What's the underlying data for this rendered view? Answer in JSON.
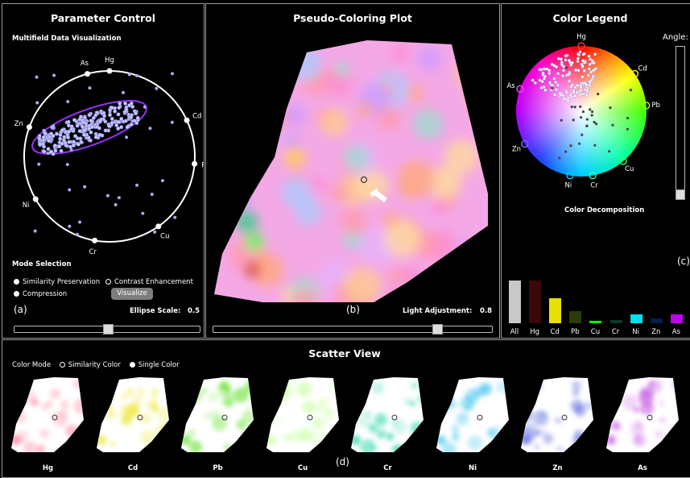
{
  "param_panel": {
    "title": "Parameter Control",
    "subtitle": "Multifield Data Visualization",
    "axes": [
      "Hg",
      "Cd",
      "Pb",
      "Cu",
      "Cr",
      "Ni",
      "Zn",
      "As"
    ],
    "mode_title": "Mode Selection",
    "mode_similarity": "Similarity Preservation",
    "mode_contrast": "Contrast Enhancement",
    "mode_compression": "Compression",
    "visualize_label": "Visualize",
    "ellipse_label": "Ellipse Scale:",
    "ellipse_value": "0.5",
    "ellipse_fraction": 0.5,
    "tag": "(a)"
  },
  "plot_panel": {
    "title": "Pseudo-Coloring Plot",
    "light_label": "Light Adjustment:",
    "light_value": "0.8",
    "light_fraction": 0.8,
    "tag": "(b)"
  },
  "legend_panel": {
    "title": "Color Legend",
    "angle_label": "Angle:",
    "wheel_labels": [
      "Hg",
      "Cd",
      "Pb",
      "Cu",
      "Cr",
      "Ni",
      "Zn",
      "As"
    ],
    "decomp_title": "Color Decomposition",
    "tag": "(c)",
    "bars": [
      {
        "label": "All",
        "value": 0.85,
        "color": "#c8c8c8"
      },
      {
        "label": "Hg",
        "value": 0.85,
        "color": "#3a0808"
      },
      {
        "label": "Cd",
        "value": 0.5,
        "color": "#e8e000"
      },
      {
        "label": "Pb",
        "value": 0.25,
        "color": "#2c3a08"
      },
      {
        "label": "Cu",
        "value": 0.05,
        "color": "#00ff00"
      },
      {
        "label": "Cr",
        "value": 0.07,
        "color": "#0a3a2a"
      },
      {
        "label": "Ni",
        "value": 0.17,
        "color": "#00e0e8"
      },
      {
        "label": "Zn",
        "value": 0.1,
        "color": "#0a1a4a"
      },
      {
        "label": "As",
        "value": 0.17,
        "color": "#c000e8"
      }
    ]
  },
  "scatter_panel": {
    "title": "Scatter View",
    "color_mode_label": "Color Mode",
    "similarity_label": "Similarity Color",
    "single_label": "Single Color",
    "tag": "(d)",
    "thumbs": [
      {
        "name": "Hg",
        "color": "#ff5a78"
      },
      {
        "name": "Cd",
        "color": "#e8e000"
      },
      {
        "name": "Pb",
        "color": "#44dd00"
      },
      {
        "name": "Cu",
        "color": "#bbff88"
      },
      {
        "name": "Cr",
        "color": "#00cc99"
      },
      {
        "name": "Ni",
        "color": "#22bbee"
      },
      {
        "name": "Zn",
        "color": "#4455dd"
      },
      {
        "name": "As",
        "color": "#bb33dd"
      }
    ]
  }
}
